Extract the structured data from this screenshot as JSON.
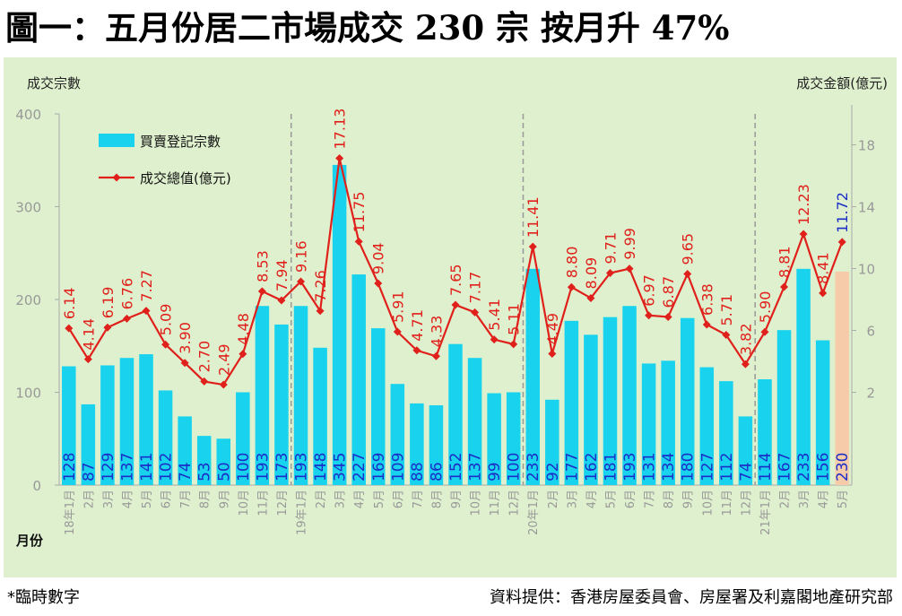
{
  "title": "圖一：五月份居二市場成交 230 宗  按月升 47%",
  "footnote": "*臨時數字",
  "source": "資料提供：香港房屋委員會、房屋署及利嘉閣地產研究部",
  "colors": {
    "background": "#dff0ce",
    "bar": "#19d3ee",
    "bar_provisional": "#f5cba9",
    "line": "#e0201b",
    "value_label_line": "#e0201b",
    "value_label_line_latest": "#1b2ec8",
    "value_label_bar": "#1b2ec8",
    "tick_label": "#999999",
    "grid_divider": "#999999"
  },
  "chart_data": {
    "type": "bar",
    "left_axis_title": "成交宗數",
    "right_axis_title": "成交金額(億元)",
    "x_axis_title": "月份",
    "left_ylim": [
      0,
      400
    ],
    "left_ticks": [
      "0",
      "100",
      "200",
      "300",
      "400"
    ],
    "right_ylim": [
      -4,
      20
    ],
    "right_ticks": [
      "2",
      "6",
      "10",
      "14",
      "18"
    ],
    "legend_position": "top-left",
    "categories": [
      "18年1月",
      "2月",
      "3月",
      "4月",
      "5月",
      "6月",
      "7月",
      "8月",
      "9月",
      "10月",
      "11月",
      "12月",
      "19年1月",
      "2月",
      "3月",
      "4月",
      "5月",
      "6月",
      "7月",
      "8月",
      "9月",
      "10月",
      "11月",
      "12月",
      "20年1月",
      "2月",
      "3月",
      "4月",
      "5月",
      "6月",
      "7月",
      "8月",
      "9月",
      "10月",
      "11月",
      "12月",
      "21年1月",
      "2月",
      "3月",
      "4月",
      "5月"
    ],
    "series": [
      {
        "name": "買賣登記宗數",
        "kind": "bar",
        "axis": "left",
        "labels": [
          "128",
          "87",
          "129",
          "137",
          "141",
          "102",
          "74",
          "53",
          "50",
          "100",
          "193",
          "173",
          "193",
          "148",
          "345",
          "227",
          "169",
          "109",
          "88",
          "86",
          "152",
          "137",
          "99",
          "100",
          "233",
          "92",
          "177",
          "162",
          "181",
          "193",
          "131",
          "134",
          "180",
          "127",
          "112",
          "74",
          "114",
          "167",
          "233",
          "156",
          "230"
        ],
        "values": [
          128,
          87,
          129,
          137,
          141,
          102,
          74,
          53,
          50,
          100,
          193,
          173,
          193,
          148,
          345,
          227,
          169,
          109,
          88,
          86,
          152,
          137,
          99,
          100,
          233,
          92,
          177,
          162,
          181,
          193,
          131,
          134,
          180,
          127,
          112,
          74,
          114,
          167,
          233,
          156,
          230
        ]
      },
      {
        "name": "成交總值(億元)",
        "kind": "line",
        "axis": "right",
        "labels": [
          "6.14",
          "4.14",
          "6.19",
          "6.76",
          "7.27",
          "5.09",
          "3.90",
          "2.70",
          "2.49",
          "4.48",
          "8.53",
          "7.94",
          "9.16",
          "7.26",
          "17.13",
          "11.75",
          "9.04",
          "5.91",
          "4.71",
          "4.33",
          "7.65",
          "7.17",
          "5.41",
          "5.11",
          "11.41",
          "4.49",
          "8.80",
          "8.09",
          "9.71",
          "9.99",
          "6.97",
          "6.87",
          "9.65",
          "6.38",
          "5.71",
          "3.82",
          "5.90",
          "8.81",
          "12.23",
          "8.41",
          "11.72"
        ],
        "values": [
          6.14,
          4.14,
          6.19,
          6.76,
          7.27,
          5.09,
          3.9,
          2.7,
          2.49,
          4.48,
          8.53,
          7.94,
          9.16,
          7.26,
          17.13,
          11.75,
          9.04,
          5.91,
          4.71,
          4.33,
          7.65,
          7.17,
          5.41,
          5.11,
          11.41,
          4.49,
          8.8,
          8.09,
          9.71,
          9.99,
          6.97,
          6.87,
          9.65,
          6.38,
          5.71,
          3.82,
          5.9,
          8.81,
          12.23,
          8.41,
          11.72
        ]
      }
    ]
  }
}
